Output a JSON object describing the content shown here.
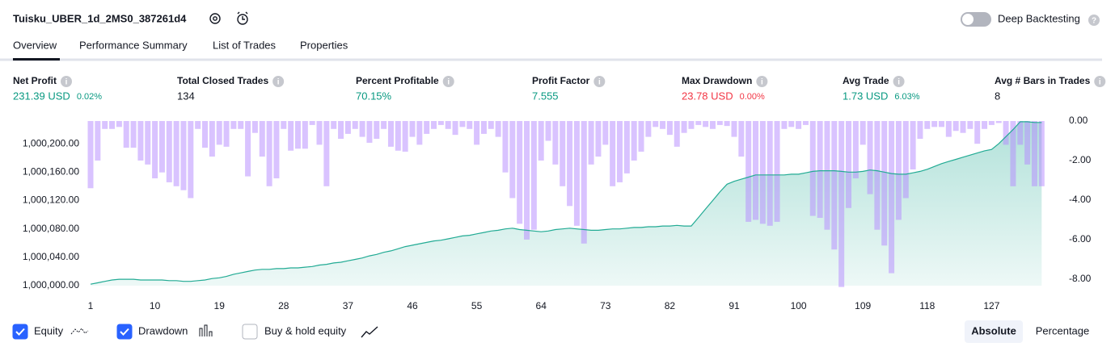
{
  "header": {
    "title": "Tuisku_UBER_1d_2MS0_387261d4",
    "deep_backtesting": "Deep Backtesting"
  },
  "tabs": [
    "Overview",
    "Performance Summary",
    "List of Trades",
    "Properties"
  ],
  "metrics": [
    {
      "label": "Net Profit",
      "value": "231.39 USD",
      "percent": "0.02%"
    },
    {
      "label": "Total Closed Trades",
      "value": "134"
    },
    {
      "label": "Percent Profitable",
      "value": "70.15%"
    },
    {
      "label": "Profit Factor",
      "value": "7.555"
    },
    {
      "label": "Max Drawdown",
      "value": "23.78 USD",
      "percent": "0.00%"
    },
    {
      "label": "Avg Trade",
      "value": "1.73 USD",
      "percent": "6.03%"
    },
    {
      "label": "Avg # Bars in Trades",
      "value": "8"
    }
  ],
  "controls": {
    "buy_hold": "Buy & hold equity",
    "absolute": "Absolute",
    "percentage": "Percentage"
  },
  "chart_data": {
    "type": "line",
    "x": [
      1,
      2,
      3,
      4,
      5,
      6,
      7,
      8,
      9,
      10,
      11,
      12,
      13,
      14,
      15,
      16,
      17,
      18,
      19,
      20,
      21,
      22,
      23,
      24,
      25,
      26,
      27,
      28,
      29,
      30,
      31,
      32,
      33,
      34,
      35,
      36,
      37,
      38,
      39,
      40,
      41,
      42,
      43,
      44,
      45,
      46,
      47,
      48,
      49,
      50,
      51,
      52,
      53,
      54,
      55,
      56,
      57,
      58,
      59,
      60,
      61,
      62,
      63,
      64,
      65,
      66,
      67,
      68,
      69,
      70,
      71,
      72,
      73,
      74,
      75,
      76,
      77,
      78,
      79,
      80,
      81,
      82,
      83,
      84,
      85,
      86,
      87,
      88,
      89,
      90,
      91,
      92,
      93,
      94,
      95,
      96,
      97,
      98,
      99,
      100,
      101,
      102,
      103,
      104,
      105,
      106,
      107,
      108,
      109,
      110,
      111,
      112,
      113,
      114,
      115,
      116,
      117,
      118,
      119,
      120,
      121,
      122,
      123,
      124,
      125,
      126,
      127,
      128,
      129,
      130,
      131,
      132,
      133,
      134
    ],
    "series": [
      {
        "name": "Equity",
        "color": "#22ab94",
        "values": [
          1000002,
          1000004,
          1000006,
          1000008,
          1000009,
          1000009,
          1000009,
          1000008,
          1000008,
          1000008,
          1000008,
          1000007,
          1000007,
          1000006,
          1000006,
          1000007,
          1000008,
          1000010,
          1000011,
          1000013,
          1000016,
          1000018,
          1000020,
          1000022,
          1000023,
          1000023,
          1000024,
          1000024,
          1000025,
          1000025,
          1000026,
          1000027,
          1000029,
          1000030,
          1000032,
          1000033,
          1000035,
          1000037,
          1000039,
          1000042,
          1000044,
          1000047,
          1000049,
          1000052,
          1000055,
          1000057,
          1000059,
          1000061,
          1000063,
          1000064,
          1000066,
          1000068,
          1000070,
          1000071,
          1000073,
          1000075,
          1000077,
          1000078,
          1000080,
          1000081,
          1000079,
          1000078,
          1000077,
          1000076,
          1000077,
          1000079,
          1000080,
          1000081,
          1000080,
          1000079,
          1000078,
          1000078,
          1000079,
          1000080,
          1000080,
          1000081,
          1000082,
          1000082,
          1000083,
          1000083,
          1000084,
          1000084,
          1000085,
          1000084,
          1000084,
          1000096,
          1000108,
          1000120,
          1000132,
          1000143,
          1000147,
          1000150,
          1000153,
          1000156,
          1000156,
          1000156,
          1000156,
          1000156,
          1000157,
          1000157,
          1000159,
          1000161,
          1000162,
          1000162,
          1000162,
          1000161,
          1000160,
          1000160,
          1000161,
          1000163,
          1000162,
          1000160,
          1000158,
          1000157,
          1000157,
          1000159,
          1000161,
          1000164,
          1000168,
          1000172,
          1000175,
          1000178,
          1000181,
          1000184,
          1000187,
          1000190,
          1000192,
          1000200,
          1000210,
          1000220,
          1000231,
          1000231,
          1000230,
          1000230
        ]
      },
      {
        "name": "Drawdown",
        "type": "bar",
        "axis": "y2",
        "color": "#b388ff",
        "values": [
          -3.4,
          -2.0,
          -0.4,
          -0.4,
          -0.3,
          -1.35,
          -1.35,
          -2.0,
          -2.2,
          -2.9,
          -2.6,
          -3.1,
          -3.3,
          -3.5,
          -3.9,
          -0.4,
          -1.35,
          -1.8,
          -1.2,
          -1.3,
          -0.4,
          -0.4,
          -2.8,
          -0.6,
          -1.8,
          -3.3,
          -2.9,
          -0.4,
          -1.5,
          -1.4,
          -1.4,
          -0.2,
          -1.2,
          -3.3,
          -0.4,
          -0.9,
          -0.65,
          -0.4,
          -0.8,
          -1.1,
          -0.9,
          -0.4,
          -1.3,
          -1.5,
          -1.55,
          -0.8,
          -1.2,
          -0.65,
          -0.4,
          -0.2,
          -0.4,
          -0.7,
          -0.3,
          -0.4,
          -1.2,
          -0.65,
          -0.4,
          -0.8,
          -2.6,
          -3.9,
          -5.2,
          -6.0,
          -5.5,
          -2.0,
          -1.0,
          -2.2,
          -3.3,
          -4.3,
          -5.3,
          -6.2,
          -2.2,
          -1.8,
          -1.2,
          -3.3,
          -3.1,
          -2.65,
          -2.0,
          -1.55,
          -0.8,
          -0.3,
          -0.4,
          -0.7,
          -1.3,
          -0.6,
          -0.4,
          -0.2,
          -0.3,
          -0.4,
          -0.2,
          -0.25,
          -0.8,
          -1.8,
          -5.1,
          -5.0,
          -5.2,
          -5.3,
          -5.1,
          -0.4,
          -0.3,
          -0.4,
          -0.2,
          -4.8,
          -4.9,
          -5.5,
          -6.5,
          -8.4,
          -4.4,
          -2.9,
          -1.2,
          -3.7,
          -5.5,
          -6.3,
          -7.7,
          -5.0,
          -3.9,
          -2.45,
          -0.9,
          -0.4,
          -0.3,
          -0.3,
          -0.8,
          -0.5,
          -0.6,
          -0.4,
          -1.15,
          -0.4,
          -0.2,
          -0.1,
          -1.2,
          -3.3,
          -1.2,
          -2.2,
          -3.3,
          -3.3
        ]
      }
    ],
    "xlim": [
      1,
      136
    ],
    "xticks": [
      1,
      10,
      19,
      28,
      37,
      46,
      55,
      64,
      73,
      82,
      91,
      100,
      109,
      118,
      127
    ],
    "ylim": [
      1000000,
      1000232
    ],
    "yticks": [
      {
        "value": 1000000,
        "label": "1,000,000.00"
      },
      {
        "value": 1000040,
        "label": "1,000,040.00"
      },
      {
        "value": 1000080,
        "label": "1,000,080.00"
      },
      {
        "value": 1000120,
        "label": "1,000,120.00"
      },
      {
        "value": 1000160,
        "label": "1,000,160.00"
      },
      {
        "value": 1000200,
        "label": "1,000,200.00"
      }
    ],
    "y2lim": [
      -8.33,
      0
    ],
    "y2ticks": [
      {
        "value": 0,
        "label": "0.00"
      },
      {
        "value": -2,
        "label": "-2.00"
      },
      {
        "value": -4,
        "label": "-4.00"
      },
      {
        "value": -6,
        "label": "-6.00"
      },
      {
        "value": -8,
        "label": "-8.00"
      }
    ]
  }
}
